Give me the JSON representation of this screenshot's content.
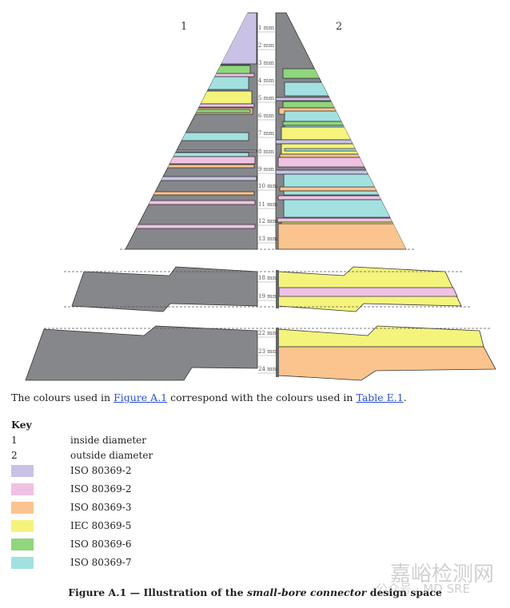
{
  "figure": {
    "side_labels": {
      "inside": "1",
      "outside": "2"
    },
    "scale_labels": [
      "1 mm",
      "2 mm",
      "3 mm",
      "4 mm",
      "5 mm",
      "6 mm",
      "7 mm",
      "8 mm",
      "9 mm",
      "10 mm",
      "11 mm",
      "12 mm",
      "13 mm",
      "18 mm",
      "19 mm",
      "22 mm",
      "23 mm",
      "24 mm"
    ],
    "colors": {
      "gray": "#86878b",
      "lavender": "#c9c2e6",
      "pink": "#efc1e3",
      "orange": "#fbc48e",
      "yellow": "#f4f47c",
      "green": "#90d67c",
      "cyan": "#a3e1e1"
    }
  },
  "note": {
    "before": "The colours used in ",
    "link1": "Figure A.1",
    "middle": " correspond with the colours used in ",
    "link2": "Table E.1",
    "after": "."
  },
  "key": {
    "title": "Key",
    "numbered": [
      {
        "num": "1",
        "label": "inside diameter"
      },
      {
        "num": "2",
        "label": "outside diameter"
      }
    ],
    "swatches": [
      {
        "color": "#c9c2e6",
        "label": "ISO 80369-2"
      },
      {
        "color": "#efc1e3",
        "label": "ISO 80369-2"
      },
      {
        "color": "#fbc48e",
        "label": "ISO 80369-3"
      },
      {
        "color": "#f4f47c",
        "label": "IEC 80369-5"
      },
      {
        "color": "#90d67c",
        "label": "ISO 80369-6"
      },
      {
        "color": "#a3e1e1",
        "label": "ISO 80369-7"
      }
    ]
  },
  "caption": {
    "prefix": "Figure A.1 — Illustration of the ",
    "italic": "small-bore connector",
    "suffix": " design space"
  },
  "watermark": {
    "line1": "嘉峪检测网",
    "line2": "公众号 · MD SRE"
  }
}
